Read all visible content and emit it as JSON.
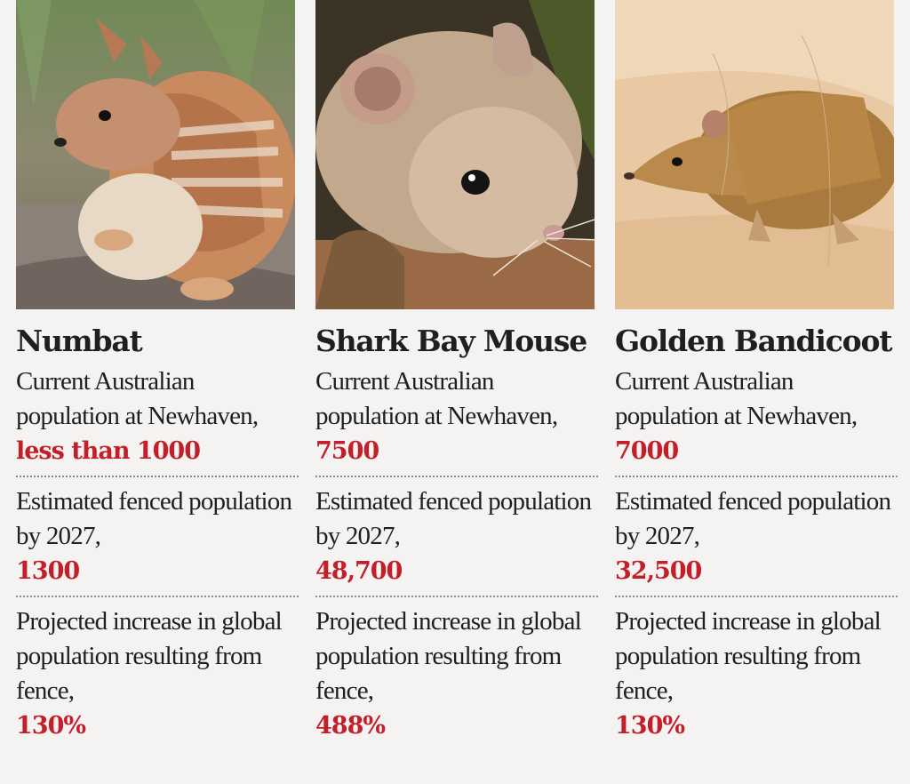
{
  "animals": [
    {
      "name": "Numbat",
      "current_label": "Current Australian population at Newhaven,",
      "current_value": "less than 1000",
      "fenced_label": "Estimated fenced population by 2027,",
      "fenced_value": "1300",
      "increase_label": "Projected increase in global population resulting from fence,",
      "increase_value": "130%"
    },
    {
      "name": "Shark Bay Mouse",
      "current_label": "Current Australian population at Newhaven,",
      "current_value": "7500",
      "fenced_label": "Estimated fenced population by 2027,",
      "fenced_value": "48,700",
      "increase_label": "Projected increase in global population resulting from fence,",
      "increase_value": "488%"
    },
    {
      "name": "Golden Bandicoot",
      "current_label": "Current Australian population at Newhaven,",
      "current_value": "7000",
      "fenced_label": "Estimated fenced population by 2027,",
      "fenced_value": "32,500",
      "increase_label": "Projected increase in global population resulting from fence,",
      "increase_value": "130%"
    }
  ],
  "colors": {
    "accent": "#c21f2b",
    "background": "#f4f3f1",
    "text": "#1f1f1f"
  }
}
